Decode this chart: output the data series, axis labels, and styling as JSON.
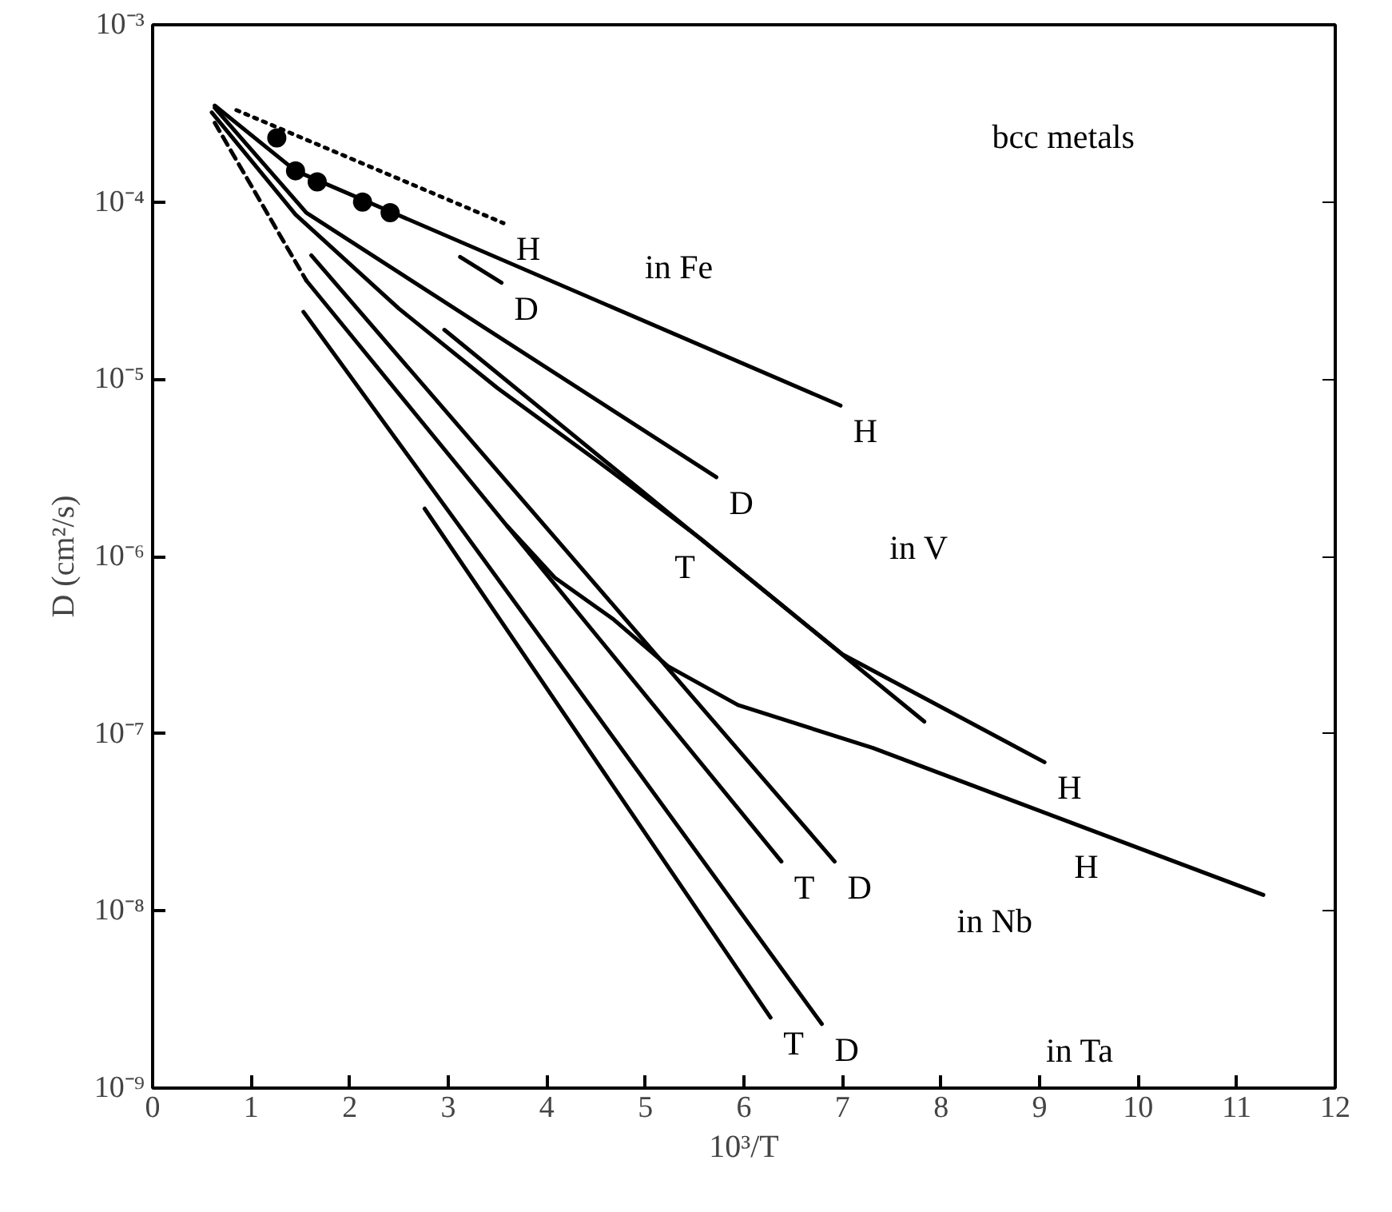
{
  "chart_data": {
    "type": "line",
    "xlabel": "10³/T",
    "ylabel": "D (cm²/s)",
    "log": "y",
    "grid": false,
    "marker": "none",
    "xlim": [
      0,
      12
    ],
    "xticks": [
      0,
      1,
      2,
      3,
      4,
      5,
      6,
      7,
      8,
      9,
      10,
      11,
      12
    ],
    "ylim": [
      1e-09,
      0.001
    ],
    "yticks": [
      {
        "value": 1e-09,
        "label": "10⁻⁹"
      },
      {
        "value": 1e-08,
        "label": "10⁻⁸"
      },
      {
        "value": 1e-07,
        "label": "10⁻⁷"
      },
      {
        "value": 1e-06,
        "label": "10⁻⁶"
      },
      {
        "value": 1e-05,
        "label": "10⁻⁵"
      },
      {
        "value": 0.0001,
        "label": "10⁻⁴"
      },
      {
        "value": 0.001,
        "label": "10⁻³"
      }
    ],
    "series": [
      {
        "name": "H",
        "color": "#000000",
        "line_style": "dotted",
        "x": [
          0.85,
          3.56
        ],
        "values": [
          0.00033,
          7.6e-05
        ]
      },
      {
        "name": "D",
        "color": "#000000",
        "line_style": "solid",
        "x": [
          3.12,
          3.54
        ],
        "values": [
          4.9e-05,
          3.5e-05
        ]
      },
      {
        "name": "H",
        "color": "#000000",
        "line_style": "solid",
        "x": [
          0.63,
          1.45,
          6.98
        ],
        "values": [
          0.00035,
          0.00015,
          7.1e-06
        ]
      },
      {
        "name": "D",
        "color": "#000000",
        "line_style": "solid",
        "x": [
          0.63,
          1.56,
          5.72
        ],
        "values": [
          0.00034,
          8.7e-05,
          2.8e-06
        ]
      },
      {
        "name": "H",
        "color": "#000000",
        "line_style": "solid",
        "x": [
          0.6,
          1.45,
          2.5,
          3.5,
          4.5,
          5.56,
          7.0,
          9.05
        ],
        "values": [
          0.00032,
          8.5e-05,
          2.5e-05,
          8.9e-06,
          3.5e-06,
          1.26e-06,
          2.8e-07,
          6.9e-08
        ]
      },
      {
        "color": "#000000",
        "line_style": "solid",
        "x": [
          2.96,
          7.83
        ],
        "values": [
          1.9e-05,
          1.17e-07
        ]
      },
      {
        "color": "#000000",
        "line_style": "dashed",
        "x": [
          0.63,
          1.56
        ],
        "values": [
          0.00028,
          3.6e-05
        ]
      },
      {
        "name": "T",
        "color": "#000000",
        "line_style": "solid",
        "x": [
          1.56,
          6.38
        ],
        "values": [
          3.6e-05,
          1.9e-08
        ]
      },
      {
        "name": "D",
        "color": "#000000",
        "line_style": "solid",
        "x": [
          1.61,
          6.92
        ],
        "values": [
          5e-05,
          1.9e-08
        ]
      },
      {
        "name": "D",
        "color": "#000000",
        "line_style": "solid",
        "x": [
          1.53,
          6.79
        ],
        "values": [
          2.4e-05,
          2.3e-09
        ]
      },
      {
        "name": "T",
        "color": "#000000",
        "line_style": "solid",
        "x": [
          2.76,
          6.27
        ],
        "values": [
          1.86e-06,
          2.5e-09
        ]
      },
      {
        "name": "H",
        "color": "#000000",
        "line_style": "solid",
        "x": [
          3.6,
          4.08,
          4.68,
          5.23,
          5.94,
          7.31,
          9.22,
          11.27
        ],
        "values": [
          1.48e-06,
          7.6e-07,
          4.4e-07,
          2.4e-07,
          1.45e-07,
          8.3e-08,
          3.3e-08,
          1.23e-08
        ]
      },
      {
        "type": "scatter",
        "marker": "circle",
        "color": "#000000",
        "x": [
          1.26,
          1.45,
          1.67,
          2.13,
          2.41
        ],
        "values": [
          0.00023,
          0.00015,
          0.00013,
          0.0001,
          8.7e-05
        ]
      }
    ],
    "annotations": [
      "bcc metals",
      "in Fe",
      "in V",
      "in Nb",
      "in Ta",
      "T"
    ]
  }
}
